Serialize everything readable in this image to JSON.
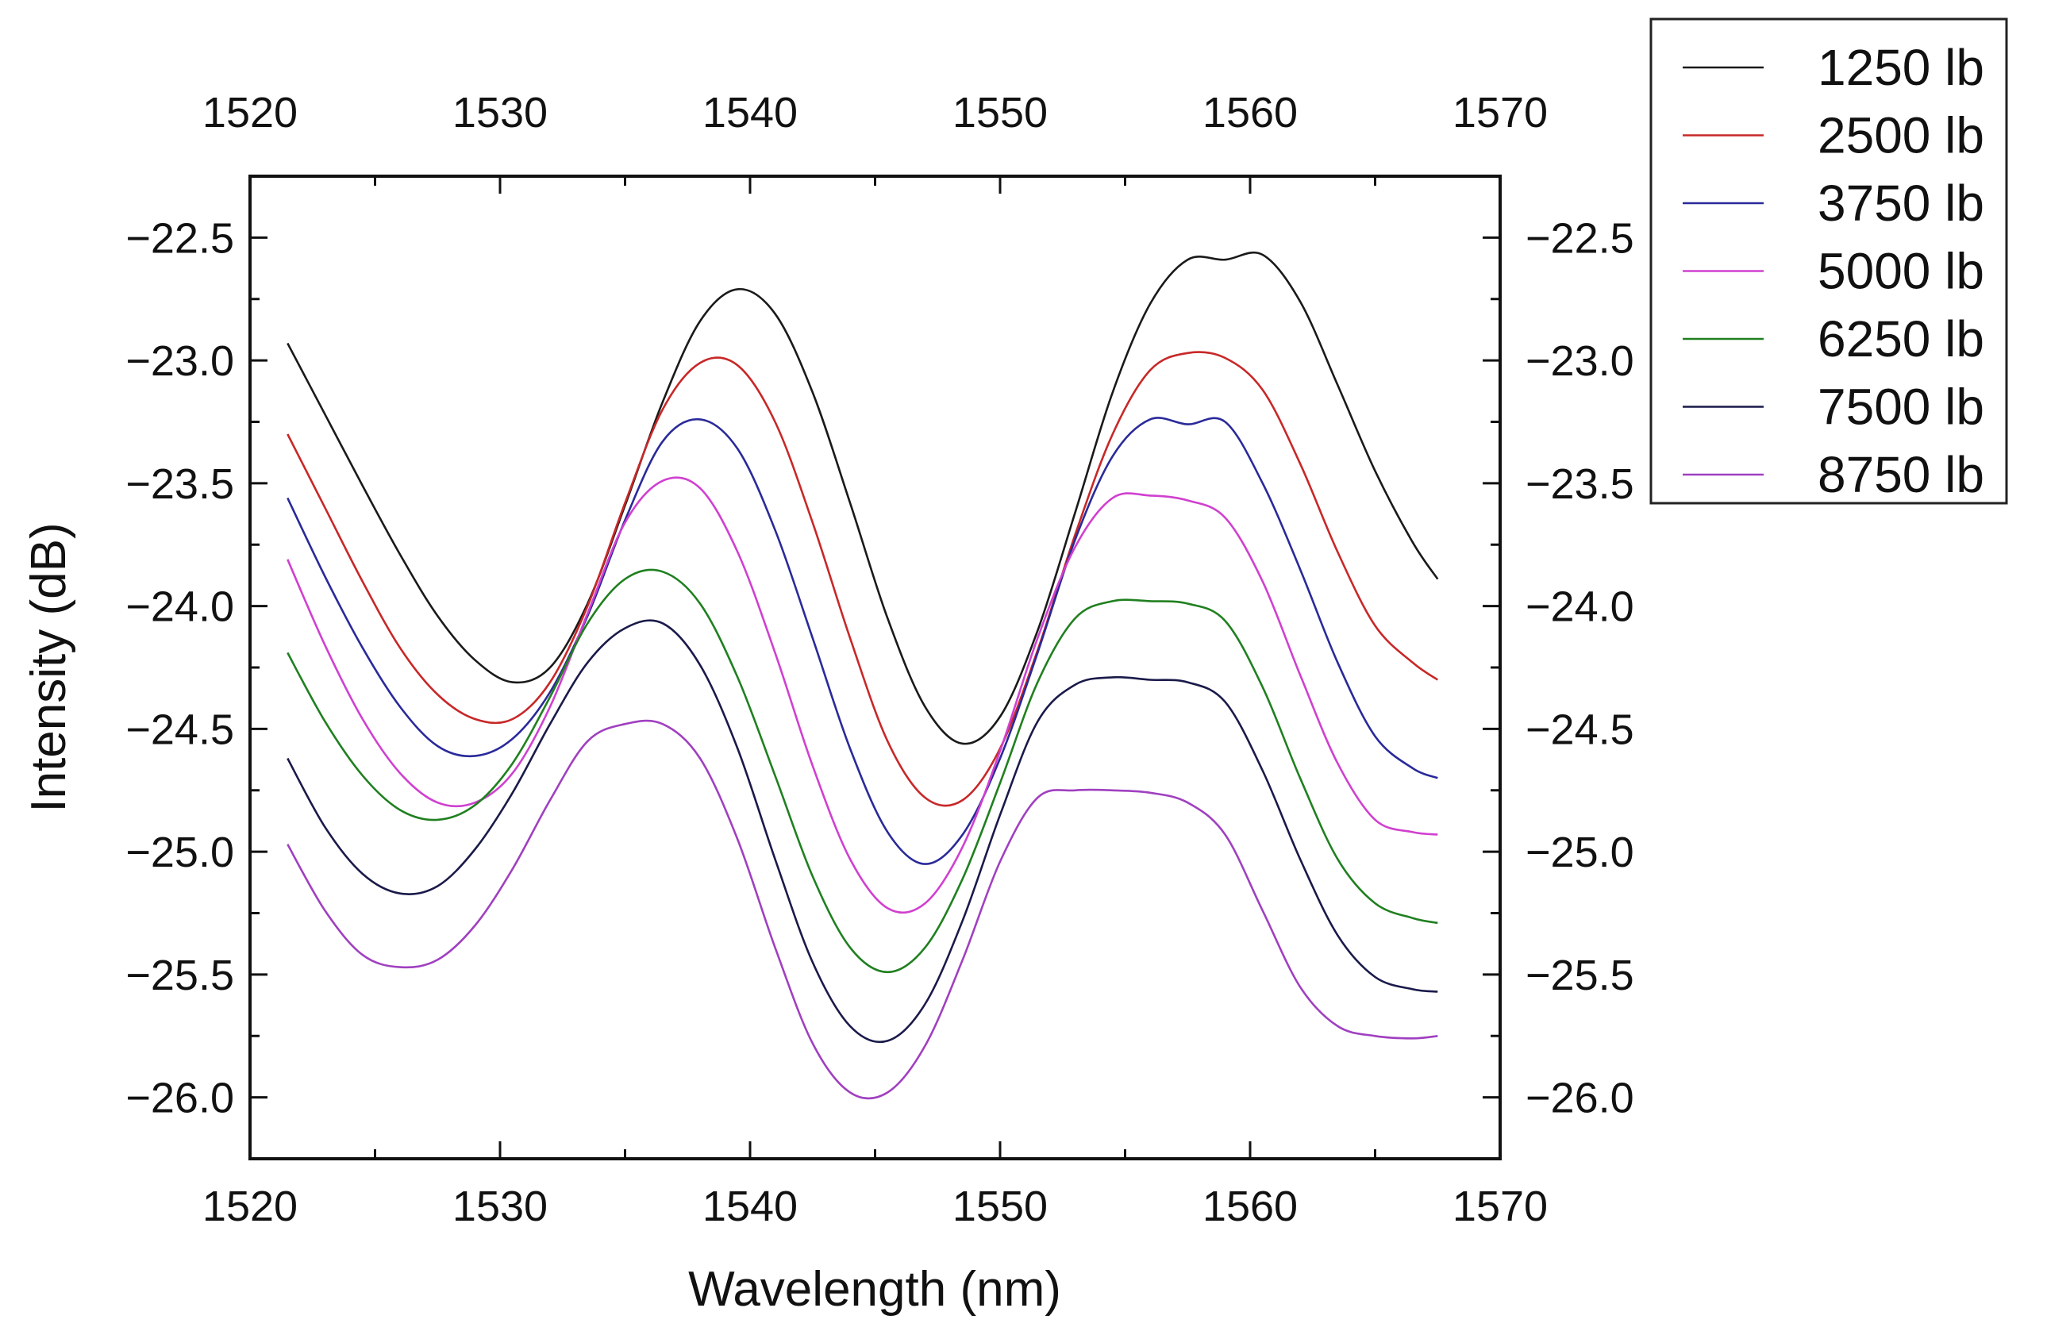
{
  "chart_data": {
    "type": "line",
    "title": "",
    "xlabel": "Wavelength (nm)",
    "ylabel": "Intensity (dB)",
    "xlim": [
      1520,
      1570
    ],
    "ylim": [
      -26.25,
      -22.25
    ],
    "x_ticks": [
      1520,
      1530,
      1540,
      1550,
      1560,
      1570
    ],
    "x_tick_labels": [
      "1520",
      "1530",
      "1540",
      "1550",
      "1560",
      "1570"
    ],
    "y_ticks": [
      -22.5,
      -23.0,
      -23.5,
      -24.0,
      -24.5,
      -25.0,
      -25.5,
      -26.0
    ],
    "y_tick_labels": [
      "−22.5",
      "−23.0",
      "−23.5",
      "−24.0",
      "−24.5",
      "−25.0",
      "−25.5",
      "−26.0"
    ],
    "mirror_axes": true,
    "grid": false,
    "legend_position": "top-right, outside plot area",
    "x": [
      1521.5,
      1523,
      1524.5,
      1526,
      1527.5,
      1529,
      1530.5,
      1532,
      1533.5,
      1535,
      1536.5,
      1538,
      1539.5,
      1541,
      1542.5,
      1544,
      1545.5,
      1547,
      1548.5,
      1550,
      1551.5,
      1553,
      1554.5,
      1556,
      1557.5,
      1559,
      1560.5,
      1562,
      1563.5,
      1565,
      1566.5,
      1567.5
    ],
    "series": [
      {
        "name": "1250 lb",
        "color": "#1a1a1a",
        "values": [
          -22.93,
          -23.22,
          -23.51,
          -23.79,
          -24.04,
          -24.22,
          -24.31,
          -24.25,
          -23.99,
          -23.59,
          -23.17,
          -22.84,
          -22.71,
          -22.81,
          -23.13,
          -23.58,
          -24.05,
          -24.41,
          -24.56,
          -24.45,
          -24.1,
          -23.62,
          -23.13,
          -22.77,
          -22.59,
          -22.59,
          -22.57,
          -22.76,
          -23.1,
          -23.45,
          -23.74,
          -23.89
        ]
      },
      {
        "name": "2500 lb",
        "color": "#c82828",
        "values": [
          -23.3,
          -23.6,
          -23.9,
          -24.17,
          -24.36,
          -24.46,
          -24.46,
          -24.31,
          -24.0,
          -23.58,
          -23.2,
          -23.01,
          -23.02,
          -23.25,
          -23.66,
          -24.13,
          -24.55,
          -24.78,
          -24.79,
          -24.58,
          -24.18,
          -23.71,
          -23.3,
          -23.04,
          -22.97,
          -22.99,
          -23.12,
          -23.42,
          -23.78,
          -24.08,
          -24.23,
          -24.3
        ]
      },
      {
        "name": "3750 lb",
        "color": "#2a2a9a",
        "values": [
          -23.56,
          -23.88,
          -24.17,
          -24.41,
          -24.57,
          -24.61,
          -24.54,
          -24.35,
          -24.04,
          -23.65,
          -23.33,
          -23.24,
          -23.36,
          -23.69,
          -24.13,
          -24.58,
          -24.92,
          -25.05,
          -24.93,
          -24.62,
          -24.19,
          -23.73,
          -23.39,
          -23.24,
          -23.26,
          -23.25,
          -23.5,
          -23.85,
          -24.23,
          -24.53,
          -24.66,
          -24.7
        ]
      },
      {
        "name": "5000 lb",
        "color": "#d040d0",
        "values": [
          -23.81,
          -24.16,
          -24.46,
          -24.68,
          -24.8,
          -24.8,
          -24.68,
          -24.41,
          -24.03,
          -23.66,
          -23.49,
          -23.52,
          -23.78,
          -24.19,
          -24.65,
          -25.03,
          -25.23,
          -25.21,
          -24.98,
          -24.59,
          -24.13,
          -23.76,
          -23.56,
          -23.55,
          -23.57,
          -23.64,
          -23.9,
          -24.28,
          -24.64,
          -24.87,
          -24.92,
          -24.93
        ]
      },
      {
        "name": "6250 lb",
        "color": "#208020",
        "values": [
          -24.19,
          -24.47,
          -24.69,
          -24.83,
          -24.87,
          -24.81,
          -24.64,
          -24.37,
          -24.07,
          -23.89,
          -23.86,
          -23.99,
          -24.29,
          -24.69,
          -25.1,
          -25.39,
          -25.49,
          -25.39,
          -25.11,
          -24.72,
          -24.31,
          -24.05,
          -23.98,
          -23.98,
          -23.99,
          -24.06,
          -24.33,
          -24.7,
          -25.03,
          -25.21,
          -25.27,
          -25.29
        ]
      },
      {
        "name": "7500 lb",
        "color": "#1a1a4a",
        "values": [
          -24.62,
          -24.9,
          -25.09,
          -25.17,
          -25.14,
          -24.99,
          -24.76,
          -24.48,
          -24.23,
          -24.09,
          -24.07,
          -24.24,
          -24.58,
          -25.03,
          -25.45,
          -25.71,
          -25.77,
          -25.62,
          -25.28,
          -24.85,
          -24.47,
          -24.32,
          -24.29,
          -24.3,
          -24.31,
          -24.39,
          -24.67,
          -25.03,
          -25.34,
          -25.51,
          -25.56,
          -25.57
        ]
      },
      {
        "name": "8750 lb",
        "color": "#a040c0",
        "values": [
          -24.97,
          -25.24,
          -25.42,
          -25.47,
          -25.44,
          -25.3,
          -25.07,
          -24.79,
          -24.55,
          -24.48,
          -24.48,
          -24.62,
          -24.95,
          -25.39,
          -25.78,
          -25.98,
          -25.98,
          -25.79,
          -25.44,
          -25.04,
          -24.78,
          -24.75,
          -24.75,
          -24.76,
          -24.8,
          -24.93,
          -25.24,
          -25.55,
          -25.71,
          -25.75,
          -25.76,
          -25.75
        ]
      }
    ]
  }
}
